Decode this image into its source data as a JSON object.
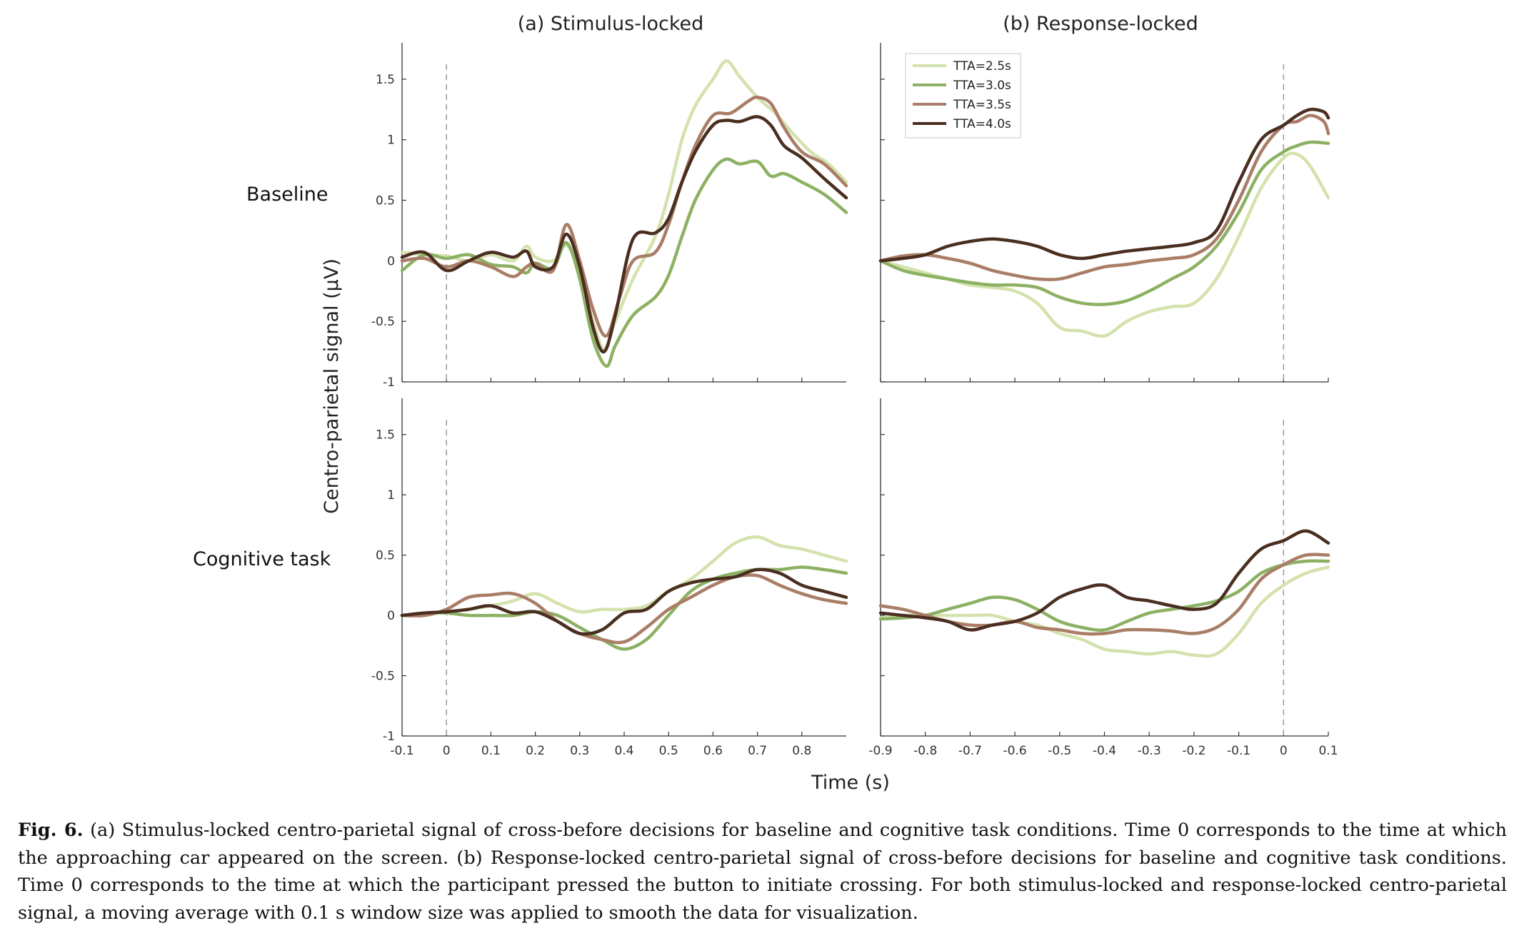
{
  "chart_data": {
    "type": "line",
    "series_names": [
      "TTA=2.5s",
      "TTA=3.0s",
      "TTA=3.5s",
      "TTA=4.0s"
    ],
    "series_colors": [
      "#d4e2ad",
      "#8cb163",
      "#a97d66",
      "#4a2e20"
    ],
    "col_titles": [
      "(a) Stimulus-locked",
      "(b) Response-locked"
    ],
    "row_labels": [
      "Baseline",
      "Cognitive task"
    ],
    "ylabel": "Centro-parietal signal (μV)",
    "xlabel": "Time (s)",
    "ylim": [
      -1,
      1.8
    ],
    "y_ticks": [
      "-1",
      "-0.5",
      "0",
      "0.5",
      "1",
      "1.5"
    ],
    "x_ticks_left": [
      "-0.1",
      "0",
      "0.1",
      "0.2",
      "0.3",
      "0.4",
      "0.5",
      "0.6",
      "0.7",
      "0.8"
    ],
    "x_ticks_right": [
      "-0.9",
      "-0.8",
      "-0.7",
      "-0.6",
      "-0.5",
      "-0.4",
      "-0.3",
      "-0.2",
      "-0.1",
      "0",
      "0.1"
    ],
    "panels": [
      {
        "name": "stimulus-baseline",
        "xlim": [
          -0.1,
          0.9
        ],
        "series": [
          {
            "name": "TTA=2.5s",
            "x": [
              -0.1,
              -0.05,
              0,
              0.05,
              0.1,
              0.15,
              0.18,
              0.2,
              0.24,
              0.27,
              0.3,
              0.33,
              0.355,
              0.38,
              0.42,
              0.47,
              0.5,
              0.53,
              0.56,
              0.6,
              0.63,
              0.66,
              0.7,
              0.74,
              0.78,
              0.82,
              0.86,
              0.9
            ],
            "y": [
              0.07,
              0.05,
              0.04,
              0.0,
              0.05,
              0.0,
              0.12,
              0.03,
              0.0,
              0.13,
              -0.1,
              -0.5,
              -0.73,
              -0.5,
              -0.15,
              0.2,
              0.55,
              1.0,
              1.28,
              1.5,
              1.65,
              1.52,
              1.35,
              1.22,
              1.05,
              0.9,
              0.8,
              0.65
            ]
          },
          {
            "name": "TTA=3.0s",
            "x": [
              -0.1,
              -0.05,
              0,
              0.05,
              0.1,
              0.15,
              0.18,
              0.2,
              0.24,
              0.27,
              0.3,
              0.33,
              0.36,
              0.38,
              0.42,
              0.47,
              0.5,
              0.53,
              0.56,
              0.6,
              0.63,
              0.66,
              0.7,
              0.73,
              0.76,
              0.8,
              0.85,
              0.9
            ],
            "y": [
              -0.08,
              0.05,
              0.02,
              0.05,
              -0.03,
              -0.05,
              -0.1,
              -0.02,
              -0.06,
              0.15,
              -0.15,
              -0.65,
              -0.87,
              -0.7,
              -0.45,
              -0.3,
              -0.12,
              0.2,
              0.5,
              0.75,
              0.84,
              0.8,
              0.82,
              0.7,
              0.72,
              0.65,
              0.55,
              0.4
            ]
          },
          {
            "name": "TTA=3.5s",
            "x": [
              -0.1,
              -0.05,
              0,
              0.05,
              0.1,
              0.15,
              0.18,
              0.2,
              0.24,
              0.27,
              0.3,
              0.33,
              0.36,
              0.39,
              0.42,
              0.47,
              0.5,
              0.53,
              0.56,
              0.6,
              0.64,
              0.68,
              0.7,
              0.73,
              0.76,
              0.8,
              0.85,
              0.9
            ],
            "y": [
              0.0,
              0.02,
              -0.05,
              0.0,
              -0.05,
              -0.13,
              -0.05,
              -0.02,
              -0.08,
              0.3,
              0.0,
              -0.4,
              -0.62,
              -0.3,
              0.0,
              0.07,
              0.3,
              0.65,
              0.95,
              1.2,
              1.22,
              1.32,
              1.35,
              1.3,
              1.1,
              0.9,
              0.8,
              0.62
            ]
          },
          {
            "name": "TTA=4.0s",
            "x": [
              -0.1,
              -0.05,
              0,
              0.05,
              0.1,
              0.15,
              0.18,
              0.2,
              0.24,
              0.27,
              0.3,
              0.33,
              0.355,
              0.38,
              0.42,
              0.47,
              0.5,
              0.53,
              0.56,
              0.6,
              0.63,
              0.66,
              0.7,
              0.73,
              0.76,
              0.8,
              0.85,
              0.9
            ],
            "y": [
              0.03,
              0.07,
              -0.08,
              0.0,
              0.07,
              0.03,
              0.08,
              -0.05,
              -0.05,
              0.22,
              -0.05,
              -0.55,
              -0.75,
              -0.45,
              0.18,
              0.23,
              0.35,
              0.65,
              0.9,
              1.12,
              1.16,
              1.15,
              1.19,
              1.12,
              0.95,
              0.85,
              0.68,
              0.52
            ]
          }
        ]
      },
      {
        "name": "response-baseline",
        "xlim": [
          -0.9,
          0.1
        ],
        "series": [
          {
            "name": "TTA=2.5s",
            "x": [
              -0.9,
              -0.85,
              -0.8,
              -0.75,
              -0.7,
              -0.65,
              -0.6,
              -0.55,
              -0.5,
              -0.45,
              -0.4,
              -0.35,
              -0.3,
              -0.25,
              -0.2,
              -0.15,
              -0.1,
              -0.05,
              0,
              0.03,
              0.06,
              0.1
            ],
            "y": [
              0.0,
              -0.05,
              -0.1,
              -0.15,
              -0.2,
              -0.22,
              -0.25,
              -0.35,
              -0.55,
              -0.58,
              -0.62,
              -0.5,
              -0.42,
              -0.38,
              -0.35,
              -0.15,
              0.2,
              0.6,
              0.85,
              0.88,
              0.78,
              0.52
            ]
          },
          {
            "name": "TTA=3.0s",
            "x": [
              -0.9,
              -0.85,
              -0.8,
              -0.75,
              -0.7,
              -0.65,
              -0.6,
              -0.55,
              -0.5,
              -0.45,
              -0.4,
              -0.35,
              -0.3,
              -0.25,
              -0.2,
              -0.15,
              -0.1,
              -0.05,
              0,
              0.03,
              0.06,
              0.1
            ],
            "y": [
              0.0,
              -0.08,
              -0.12,
              -0.15,
              -0.18,
              -0.2,
              -0.2,
              -0.22,
              -0.3,
              -0.35,
              -0.36,
              -0.33,
              -0.25,
              -0.15,
              -0.05,
              0.12,
              0.4,
              0.75,
              0.9,
              0.95,
              0.98,
              0.97
            ]
          },
          {
            "name": "TTA=3.5s",
            "x": [
              -0.9,
              -0.85,
              -0.8,
              -0.75,
              -0.7,
              -0.65,
              -0.6,
              -0.55,
              -0.5,
              -0.45,
              -0.4,
              -0.35,
              -0.3,
              -0.25,
              -0.2,
              -0.15,
              -0.1,
              -0.05,
              0,
              0.03,
              0.06,
              0.09,
              0.1
            ],
            "y": [
              0.0,
              0.04,
              0.05,
              0.02,
              -0.02,
              -0.08,
              -0.12,
              -0.15,
              -0.15,
              -0.1,
              -0.05,
              -0.03,
              0.0,
              0.02,
              0.05,
              0.18,
              0.5,
              0.9,
              1.12,
              1.15,
              1.2,
              1.15,
              1.05
            ]
          },
          {
            "name": "TTA=4.0s",
            "x": [
              -0.9,
              -0.85,
              -0.8,
              -0.75,
              -0.7,
              -0.65,
              -0.6,
              -0.55,
              -0.5,
              -0.45,
              -0.4,
              -0.35,
              -0.3,
              -0.25,
              -0.2,
              -0.15,
              -0.1,
              -0.05,
              0,
              0.03,
              0.06,
              0.09,
              0.1
            ],
            "y": [
              0.0,
              0.02,
              0.05,
              0.12,
              0.16,
              0.18,
              0.16,
              0.12,
              0.05,
              0.02,
              0.05,
              0.08,
              0.1,
              0.12,
              0.15,
              0.25,
              0.65,
              1.0,
              1.12,
              1.2,
              1.25,
              1.23,
              1.18
            ]
          }
        ]
      },
      {
        "name": "stimulus-cognitive",
        "xlim": [
          -0.1,
          0.9
        ],
        "series": [
          {
            "name": "TTA=2.5s",
            "x": [
              -0.1,
              -0.05,
              0,
              0.05,
              0.1,
              0.15,
              0.2,
              0.25,
              0.3,
              0.35,
              0.4,
              0.45,
              0.5,
              0.55,
              0.6,
              0.65,
              0.7,
              0.75,
              0.8,
              0.85,
              0.9
            ],
            "y": [
              0.0,
              0.0,
              0.03,
              0.05,
              0.08,
              0.12,
              0.18,
              0.1,
              0.03,
              0.05,
              0.05,
              0.08,
              0.2,
              0.3,
              0.45,
              0.6,
              0.65,
              0.58,
              0.55,
              0.5,
              0.45
            ]
          },
          {
            "name": "TTA=3.0s",
            "x": [
              -0.1,
              -0.05,
              0,
              0.05,
              0.1,
              0.15,
              0.2,
              0.25,
              0.3,
              0.35,
              0.4,
              0.45,
              0.5,
              0.55,
              0.6,
              0.65,
              0.7,
              0.75,
              0.8,
              0.85,
              0.9
            ],
            "y": [
              0.0,
              0.02,
              0.02,
              0.0,
              0.0,
              0.0,
              0.03,
              0.0,
              -0.1,
              -0.2,
              -0.28,
              -0.2,
              0.0,
              0.2,
              0.3,
              0.35,
              0.38,
              0.38,
              0.4,
              0.38,
              0.35
            ]
          },
          {
            "name": "TTA=3.5s",
            "x": [
              -0.1,
              -0.05,
              0,
              0.05,
              0.1,
              0.15,
              0.2,
              0.25,
              0.3,
              0.35,
              0.4,
              0.45,
              0.5,
              0.55,
              0.6,
              0.65,
              0.7,
              0.75,
              0.8,
              0.85,
              0.9
            ],
            "y": [
              0.0,
              0.0,
              0.05,
              0.15,
              0.17,
              0.18,
              0.1,
              -0.05,
              -0.15,
              -0.2,
              -0.22,
              -0.1,
              0.05,
              0.15,
              0.25,
              0.32,
              0.33,
              0.25,
              0.18,
              0.13,
              0.1
            ]
          },
          {
            "name": "TTA=4.0s",
            "x": [
              -0.1,
              -0.05,
              0,
              0.05,
              0.1,
              0.15,
              0.2,
              0.25,
              0.3,
              0.35,
              0.4,
              0.45,
              0.5,
              0.55,
              0.6,
              0.65,
              0.7,
              0.75,
              0.8,
              0.85,
              0.9
            ],
            "y": [
              0.0,
              0.02,
              0.03,
              0.05,
              0.08,
              0.02,
              0.03,
              -0.05,
              -0.15,
              -0.12,
              0.02,
              0.05,
              0.2,
              0.27,
              0.3,
              0.32,
              0.38,
              0.35,
              0.25,
              0.2,
              0.15
            ]
          }
        ]
      },
      {
        "name": "response-cognitive",
        "xlim": [
          -0.9,
          0.1
        ],
        "series": [
          {
            "name": "TTA=2.5s",
            "x": [
              -0.9,
              -0.85,
              -0.8,
              -0.75,
              -0.7,
              -0.65,
              -0.6,
              -0.55,
              -0.5,
              -0.45,
              -0.4,
              -0.35,
              -0.3,
              -0.25,
              -0.2,
              -0.15,
              -0.1,
              -0.05,
              0,
              0.05,
              0.1
            ],
            "y": [
              -0.02,
              0.0,
              0.0,
              0.0,
              0.0,
              0.0,
              -0.05,
              -0.08,
              -0.15,
              -0.2,
              -0.28,
              -0.3,
              -0.32,
              -0.3,
              -0.33,
              -0.32,
              -0.15,
              0.1,
              0.25,
              0.35,
              0.4
            ]
          },
          {
            "name": "TTA=3.0s",
            "x": [
              -0.9,
              -0.85,
              -0.8,
              -0.75,
              -0.7,
              -0.65,
              -0.6,
              -0.55,
              -0.5,
              -0.45,
              -0.4,
              -0.35,
              -0.3,
              -0.25,
              -0.2,
              -0.15,
              -0.1,
              -0.05,
              0,
              0.05,
              0.1
            ],
            "y": [
              -0.03,
              -0.02,
              0.0,
              0.05,
              0.1,
              0.15,
              0.13,
              0.05,
              -0.05,
              -0.1,
              -0.12,
              -0.05,
              0.02,
              0.05,
              0.08,
              0.12,
              0.2,
              0.35,
              0.42,
              0.45,
              0.45
            ]
          },
          {
            "name": "TTA=3.5s",
            "x": [
              -0.9,
              -0.85,
              -0.8,
              -0.75,
              -0.7,
              -0.65,
              -0.6,
              -0.55,
              -0.5,
              -0.45,
              -0.4,
              -0.35,
              -0.3,
              -0.25,
              -0.2,
              -0.15,
              -0.1,
              -0.05,
              0,
              0.05,
              0.1
            ],
            "y": [
              0.08,
              0.05,
              0.0,
              -0.05,
              -0.08,
              -0.08,
              -0.05,
              -0.1,
              -0.12,
              -0.15,
              -0.15,
              -0.12,
              -0.12,
              -0.13,
              -0.15,
              -0.1,
              0.05,
              0.3,
              0.42,
              0.5,
              0.5
            ]
          },
          {
            "name": "TTA=4.0s",
            "x": [
              -0.9,
              -0.85,
              -0.8,
              -0.75,
              -0.7,
              -0.65,
              -0.6,
              -0.55,
              -0.5,
              -0.45,
              -0.4,
              -0.35,
              -0.3,
              -0.25,
              -0.2,
              -0.15,
              -0.1,
              -0.05,
              0,
              0.05,
              0.1
            ],
            "y": [
              0.02,
              0.0,
              -0.02,
              -0.05,
              -0.12,
              -0.08,
              -0.05,
              0.02,
              0.15,
              0.22,
              0.25,
              0.15,
              0.12,
              0.08,
              0.05,
              0.1,
              0.35,
              0.55,
              0.62,
              0.7,
              0.6
            ]
          }
        ]
      }
    ]
  },
  "caption": {
    "label": "Fig. 6.",
    "text": "(a) Stimulus-locked centro-parietal signal of cross-before decisions for baseline and cognitive task conditions. Time 0 corresponds to the time at which the approaching car appeared on the screen. (b) Response-locked centro-parietal signal of cross-before decisions for baseline and cognitive task conditions. Time 0 corresponds to the time at which the participant pressed the button to initiate crossing. For both stimulus-locked and response-locked centro-parietal signal, a moving average with 0.1 s window size was applied to smooth the data for visualization."
  }
}
